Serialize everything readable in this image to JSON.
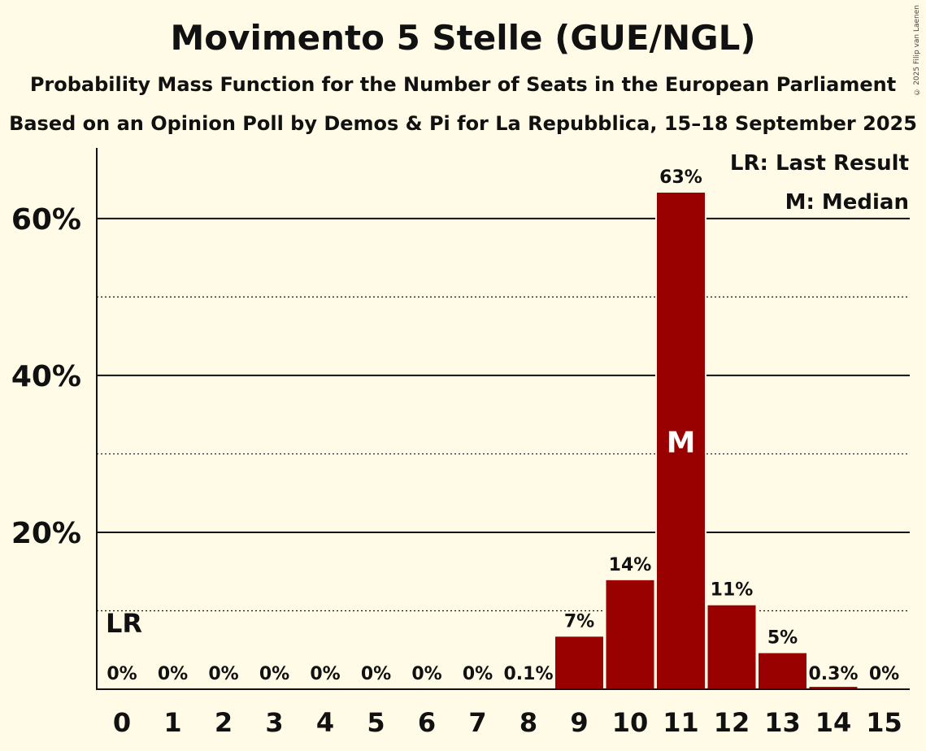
{
  "header": {
    "title": "Movimento 5 Stelle (GUE/NGL)",
    "subtitle1": "Probability Mass Function for the Number of Seats in the European Parliament",
    "subtitle2": "Based on an Opinion Poll by Demos & Pi for La Repubblica, 15–18 September 2025",
    "copyright": "© 2025 Filip van Laenen"
  },
  "chart_data": {
    "type": "bar",
    "title": "Movimento 5 Stelle (GUE/NGL)",
    "xlabel": "",
    "ylabel": "",
    "categories": [
      "0",
      "1",
      "2",
      "3",
      "4",
      "5",
      "6",
      "7",
      "8",
      "9",
      "10",
      "11",
      "12",
      "13",
      "14",
      "15"
    ],
    "values": [
      0,
      0,
      0,
      0,
      0,
      0,
      0,
      0,
      0.1,
      6.7,
      13.9,
      63.3,
      10.7,
      4.6,
      0.3,
      0
    ],
    "value_labels": [
      "0%",
      "0%",
      "0%",
      "0%",
      "0%",
      "0%",
      "0%",
      "0%",
      "0.1%",
      "7%",
      "14%",
      "63%",
      "11%",
      "5%",
      "0.3%",
      "0%"
    ],
    "ylim": [
      0,
      69
    ],
    "yticks_major": [
      20,
      40,
      60
    ],
    "ytick_labels": [
      "20%",
      "40%",
      "60%"
    ],
    "yticks_minor": [
      10,
      30,
      50
    ],
    "last_result_seat": 0,
    "median_seat": 11,
    "last_result_marker": "LR",
    "median_marker": "M",
    "legend": [
      "LR: Last Result",
      "M: Median"
    ],
    "legend_position": "top-right",
    "bar_color": "#990000",
    "background_color": "#fffbe6"
  }
}
